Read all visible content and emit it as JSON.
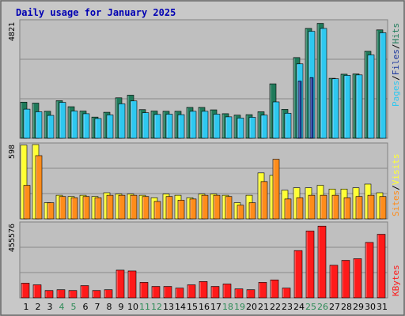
{
  "chart_data": [
    {
      "type": "bar",
      "title": "Daily usage for January 2025",
      "days": [
        "1",
        "2",
        "3",
        "4",
        "5",
        "6",
        "7",
        "8",
        "9",
        "10",
        "11",
        "12",
        "13",
        "14",
        "15",
        "16",
        "17",
        "18",
        "19",
        "20",
        "21",
        "22",
        "23",
        "24",
        "25",
        "26",
        "27",
        "28",
        "29",
        "30",
        "31"
      ],
      "weekend_days": [
        "4",
        "5",
        "11",
        "12",
        "18",
        "19",
        "25",
        "26"
      ],
      "ymax_label": "4821",
      "legend": [
        "Pages",
        "/",
        "Files",
        "/",
        "Hits"
      ],
      "colors": {
        "hits": "#1f7a5a",
        "files": "#2ec8f0",
        "pages": "#1f3a9e"
      },
      "series": [
        {
          "name": "Hits",
          "values": [
            1500,
            1460,
            1120,
            1560,
            1310,
            1130,
            880,
            1080,
            1680,
            1790,
            1190,
            1130,
            1120,
            1120,
            1280,
            1280,
            1180,
            1020,
            960,
            980,
            1100,
            2260,
            1200,
            3350,
            4560,
            4770,
            2490,
            2660,
            2670,
            3610,
            4500
          ]
        },
        {
          "name": "Files",
          "values": [
            1210,
            1100,
            950,
            1490,
            1130,
            1020,
            820,
            970,
            1430,
            1550,
            1060,
            990,
            1000,
            980,
            1120,
            1120,
            1000,
            890,
            840,
            870,
            960,
            1510,
            1040,
            3090,
            4440,
            4560,
            2470,
            2610,
            2630,
            3460,
            4380
          ]
        },
        {
          "name": "Pages",
          "values": [
            0,
            0,
            0,
            0,
            0,
            0,
            0,
            0,
            0,
            0,
            0,
            0,
            0,
            0,
            0,
            0,
            0,
            0,
            0,
            0,
            0,
            0,
            0,
            2370,
            2520,
            0,
            0,
            0,
            0,
            0,
            0
          ]
        }
      ]
    },
    {
      "type": "bar",
      "ymax_label": "598",
      "legend": [
        "Sites",
        "/",
        "Visits"
      ],
      "colors": {
        "visits": "#ffff33",
        "sites": "#ff8c1a"
      },
      "series": [
        {
          "name": "Visits",
          "values": [
            594,
            598,
            130,
            190,
            180,
            190,
            180,
            210,
            200,
            200,
            190,
            170,
            200,
            190,
            170,
            200,
            200,
            190,
            130,
            190,
            370,
            350,
            230,
            250,
            250,
            270,
            240,
            240,
            250,
            280,
            210
          ]
        },
        {
          "name": "Sites",
          "values": [
            270,
            509,
            130,
            180,
            170,
            180,
            170,
            190,
            190,
            190,
            180,
            140,
            180,
            150,
            160,
            190,
            190,
            180,
            110,
            130,
            300,
            480,
            160,
            170,
            190,
            190,
            190,
            170,
            180,
            190,
            180
          ]
        }
      ]
    },
    {
      "type": "bar",
      "ymax_label": "455576",
      "legend": [
        "KBytes"
      ],
      "colors": {
        "kbytes": "#ff1a1a"
      },
      "series": [
        {
          "name": "KBytes",
          "values": [
            90000,
            80000,
            45000,
            50000,
            45000,
            75000,
            45000,
            50000,
            170000,
            165000,
            95000,
            70000,
            70000,
            60000,
            80000,
            100000,
            70000,
            85000,
            55000,
            50000,
            95000,
            110000,
            60000,
            290000,
            410000,
            440000,
            200000,
            230000,
            240000,
            340000,
            390000
          ]
        }
      ]
    }
  ]
}
